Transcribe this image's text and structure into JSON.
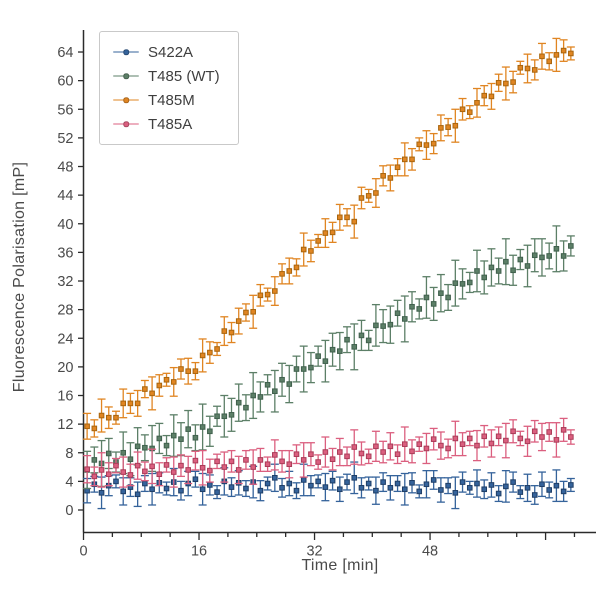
{
  "figure": {
    "background": "#ffffff",
    "text_color": "#4a4a4a",
    "spine_color": "#2b2b2b"
  },
  "chart_data": {
    "type": "scatter",
    "title": "",
    "xlabel": "Time [min]",
    "ylabel": "Fluorescence Polarisation [mP]",
    "xlim": [
      0,
      71
    ],
    "ylim": [
      -3,
      67
    ],
    "grid": false,
    "legend_position": "upper-left",
    "legend_entries": [
      "S422A",
      "T485 (WT)",
      "T485M",
      "T485A"
    ],
    "xticks": {
      "major": [
        0,
        16,
        32,
        48,
        64
      ],
      "labels": [
        "0",
        "16",
        "32",
        "48"
      ],
      "labeled_values": [
        0,
        16,
        32,
        48
      ],
      "minor_step": 4,
      "minor_max": 68
    },
    "yticks": [
      0,
      4,
      8,
      12,
      16,
      20,
      24,
      28,
      32,
      36,
      40,
      44,
      48,
      52,
      56,
      60,
      64
    ],
    "x": [
      0.5,
      1.5,
      2.5,
      3.5,
      4.5,
      5.5,
      6.5,
      7.5,
      8.5,
      9.5,
      10.5,
      11.5,
      12.5,
      13.5,
      14.5,
      15.5,
      16.5,
      17.5,
      18.5,
      19.5,
      20.5,
      21.5,
      22.5,
      23.5,
      24.5,
      25.5,
      26.5,
      27.5,
      28.5,
      29.5,
      30.5,
      31.5,
      32.5,
      33.5,
      34.5,
      35.5,
      36.5,
      37.5,
      38.5,
      39.5,
      40.5,
      41.5,
      42.5,
      43.5,
      44.5,
      45.5,
      46.5,
      47.5,
      48.5,
      49.5,
      50.5,
      51.5,
      52.5,
      53.5,
      54.5,
      55.5,
      56.5,
      57.5,
      58.5,
      59.5,
      60.5,
      61.5,
      62.5,
      63.5,
      64.5,
      65.5,
      66.5,
      67.5
    ],
    "series": [
      {
        "name": "S422A",
        "color": "#35639b",
        "edge": "#1f3e66",
        "values": [
          2.7,
          3.6,
          2.4,
          3.4,
          4.0,
          2.6,
          3.2,
          2.2,
          3.7,
          2.9,
          3.8,
          3.0,
          3.9,
          2.7,
          3.7,
          4.3,
          2.9,
          3.5,
          2.5,
          4.0,
          3.2,
          3.8,
          3.0,
          3.9,
          2.7,
          3.7,
          4.5,
          3.1,
          3.7,
          2.7,
          4.2,
          3.4,
          4.0,
          3.2,
          4.1,
          2.9,
          3.9,
          4.5,
          3.1,
          3.7,
          2.7,
          3.9,
          3.1,
          3.7,
          2.9,
          3.8,
          2.6,
          3.6,
          4.2,
          2.8,
          3.4,
          2.4,
          3.9,
          3.1,
          3.7,
          2.9,
          3.5,
          2.3,
          3.3,
          3.9,
          2.5,
          3.1,
          2.1,
          3.6,
          2.8,
          3.4,
          2.6,
          3.5
        ],
        "errors": [
          1.7,
          1.1,
          2.2,
          1.4,
          0.9,
          1.9,
          1.3,
          1.7,
          1.1,
          2.2,
          1.4,
          0.9,
          1.9,
          1.3,
          1.7,
          1.1,
          2.2,
          1.4,
          0.9,
          1.9,
          1.3,
          1.7,
          1.1,
          2.2,
          1.4,
          0.9,
          1.9,
          1.3,
          1.7,
          1.1,
          2.2,
          1.4,
          0.9,
          1.9,
          1.3,
          1.7,
          1.1,
          2.2,
          1.4,
          0.9,
          1.9,
          1.3,
          1.7,
          1.1,
          2.2,
          1.4,
          0.9,
          1.9,
          1.3,
          1.7,
          1.1,
          2.2,
          1.4,
          0.9,
          1.9,
          1.3,
          1.7,
          1.1,
          2.2,
          1.4,
          0.9,
          1.9,
          1.3,
          1.7,
          1.1,
          2.2,
          1.4,
          0.9
        ]
      },
      {
        "name": "T485 (WT)",
        "color": "#5c7f67",
        "edge": "#40604d",
        "values": [
          5.6,
          7.0,
          6.5,
          7.9,
          6.7,
          8.0,
          7.1,
          8.9,
          8.7,
          8.6,
          10.0,
          9.0,
          10.4,
          9.9,
          11.3,
          10.1,
          11.6,
          11.0,
          13.1,
          13.1,
          13.3,
          15.0,
          14.3,
          16.0,
          15.8,
          17.5,
          16.6,
          18.2,
          17.6,
          19.7,
          19.7,
          19.9,
          21.5,
          20.8,
          22.4,
          22.2,
          23.8,
          22.8,
          24.4,
          23.7,
          25.8,
          25.7,
          25.9,
          27.5,
          26.7,
          28.4,
          28.1,
          29.7,
          28.8,
          30.3,
          29.7,
          31.7,
          31.6,
          31.8,
          33.4,
          32.5,
          33.9,
          33.4,
          34.7,
          33.5,
          35.0,
          34.1,
          35.6,
          35.3,
          35.5,
          36.5,
          35.5,
          36.9
        ],
        "errors": [
          2.6,
          1.8,
          3.2,
          2.1,
          1.4,
          2.9,
          2.3,
          2.6,
          1.8,
          3.2,
          2.1,
          1.4,
          2.9,
          2.3,
          2.6,
          1.8,
          3.2,
          2.1,
          1.4,
          2.9,
          2.3,
          2.6,
          1.8,
          3.2,
          2.1,
          1.4,
          2.9,
          2.3,
          2.6,
          1.8,
          3.2,
          2.1,
          1.4,
          2.9,
          2.3,
          2.6,
          1.8,
          3.2,
          2.1,
          1.4,
          2.9,
          2.3,
          2.6,
          1.8,
          3.2,
          2.1,
          1.4,
          2.9,
          2.3,
          2.6,
          1.8,
          3.2,
          2.1,
          1.4,
          2.9,
          2.3,
          2.6,
          1.8,
          3.2,
          2.1,
          1.4,
          2.9,
          2.3,
          2.6,
          1.8,
          3.2,
          2.1,
          1.4
        ]
      },
      {
        "name": "T485M",
        "color": "#e08522",
        "edge": "#a8650e",
        "values": [
          11.7,
          11.4,
          13.2,
          12.9,
          12.9,
          14.9,
          14.9,
          14.9,
          16.9,
          16.3,
          17.4,
          18.2,
          17.9,
          19.7,
          19.4,
          19.4,
          21.6,
          22.0,
          22.5,
          25.0,
          24.8,
          26.4,
          27.6,
          27.7,
          30.0,
          30.1,
          30.6,
          33.0,
          33.4,
          33.9,
          36.4,
          36.2,
          37.6,
          38.7,
          38.8,
          40.9,
          40.9,
          40.3,
          43.6,
          43.9,
          44.3,
          46.7,
          46.4,
          47.9,
          49.0,
          49.0,
          51.1,
          51.0,
          51.2,
          53.4,
          53.5,
          53.7,
          56.0,
          55.6,
          56.9,
          57.9,
          57.8,
          59.7,
          59.6,
          59.8,
          61.8,
          61.7,
          61.5,
          63.4,
          62.7,
          63.6,
          64.2,
          63.8
        ],
        "errors": [
          1.8,
          1.2,
          2.3,
          1.5,
          0.9,
          2.0,
          1.4,
          1.8,
          1.2,
          2.3,
          1.5,
          0.9,
          2.0,
          1.4,
          1.8,
          1.2,
          2.3,
          1.5,
          0.9,
          2.0,
          1.4,
          1.8,
          1.2,
          2.3,
          1.5,
          0.9,
          2.0,
          1.4,
          1.8,
          1.2,
          2.3,
          1.5,
          0.9,
          2.0,
          1.4,
          1.8,
          1.2,
          2.3,
          1.5,
          0.9,
          2.0,
          1.4,
          1.8,
          1.2,
          2.3,
          1.5,
          0.9,
          2.0,
          1.4,
          1.8,
          1.2,
          2.3,
          1.5,
          0.9,
          2.0,
          1.4,
          1.8,
          1.2,
          2.3,
          1.5,
          0.9,
          2.0,
          1.4,
          1.8,
          1.2,
          2.3,
          1.5,
          0.9
        ]
      },
      {
        "name": "T485A",
        "color": "#db5f7f",
        "edge": "#a93c58",
        "values": [
          5.7,
          4.7,
          5.6,
          5.0,
          6.2,
          5.3,
          4.9,
          6.2,
          5.4,
          6.1,
          5.0,
          6.3,
          5.3,
          6.2,
          5.6,
          6.9,
          5.9,
          5.5,
          6.8,
          6.0,
          6.8,
          5.6,
          7.0,
          6.0,
          7.0,
          6.4,
          7.7,
          6.8,
          6.4,
          7.8,
          7.0,
          7.8,
          6.7,
          8.1,
          7.1,
          8.1,
          7.5,
          8.8,
          7.9,
          7.5,
          8.9,
          8.1,
          8.9,
          7.8,
          9.2,
          8.2,
          9.2,
          8.6,
          9.9,
          9.0,
          8.6,
          10.0,
          9.2,
          10.0,
          9.0,
          10.3,
          9.3,
          10.3,
          9.7,
          11.0,
          10.0,
          9.6,
          11.0,
          10.2,
          10.9,
          9.8,
          11.2,
          10.2
        ],
        "errors": [
          1.9,
          1.3,
          2.4,
          1.6,
          1.0,
          2.1,
          1.5,
          1.9,
          1.3,
          2.4,
          1.6,
          1.0,
          2.1,
          1.5,
          1.9,
          1.3,
          2.4,
          1.6,
          1.0,
          2.1,
          1.5,
          1.9,
          1.3,
          2.4,
          1.6,
          1.0,
          2.1,
          1.5,
          1.9,
          1.3,
          2.4,
          1.6,
          1.0,
          2.1,
          1.5,
          1.9,
          1.3,
          2.4,
          1.6,
          1.0,
          2.1,
          1.5,
          1.9,
          1.3,
          2.4,
          1.6,
          1.0,
          2.1,
          1.5,
          1.9,
          1.3,
          2.4,
          1.6,
          1.0,
          2.1,
          1.5,
          1.9,
          1.3,
          2.4,
          1.6,
          1.0,
          2.1,
          1.5,
          1.9,
          1.3,
          2.4,
          1.6,
          1.0
        ]
      }
    ]
  }
}
